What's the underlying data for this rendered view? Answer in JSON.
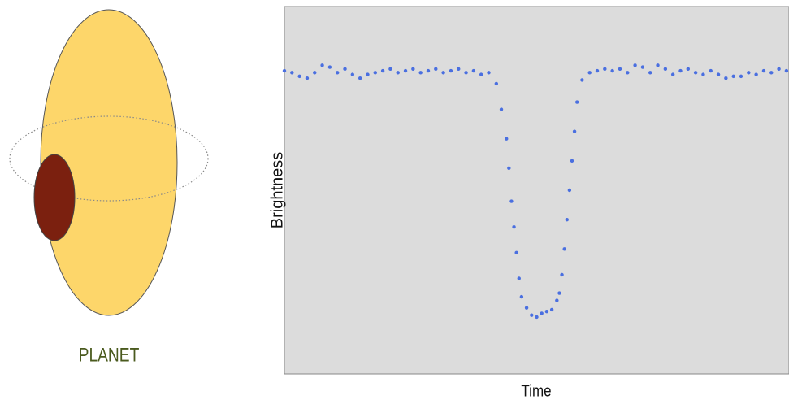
{
  "label": "PLANET",
  "chart_data": {
    "type": "scatter",
    "x_label": "Time",
    "y_label": "Brightness",
    "xlim": [
      0,
      100
    ],
    "ylim": [
      0,
      100
    ],
    "color": "#4a6fe0",
    "x": [
      0,
      1.5,
      3,
      4.5,
      6,
      7.5,
      9,
      10.5,
      12,
      13.5,
      15,
      16.5,
      18,
      19.5,
      21,
      22.5,
      24,
      25.5,
      27,
      28.5,
      30,
      31.5,
      33,
      34.5,
      36,
      37.5,
      39,
      40.5,
      42,
      43,
      44,
      44.5,
      45,
      45.5,
      46,
      46.5,
      47,
      48,
      49,
      50,
      51,
      52,
      53,
      54,
      54.5,
      55,
      55.5,
      56,
      56.5,
      57,
      57.5,
      58,
      59,
      60.5,
      62,
      63.5,
      65,
      66.5,
      68,
      69.5,
      71,
      72.5,
      74,
      75.5,
      77,
      78.5,
      80,
      81.5,
      83,
      84.5,
      86,
      87.5,
      89,
      90.5,
      92,
      93.5,
      95,
      96.5,
      98,
      99.5
    ],
    "values": [
      82.5,
      82,
      81,
      80.5,
      82,
      84,
      83.5,
      82,
      83,
      81.5,
      80.5,
      81.5,
      82,
      82.5,
      83,
      82,
      82.5,
      83,
      82,
      82.5,
      83,
      82,
      82.5,
      83,
      82,
      82.5,
      81.5,
      82,
      79,
      72,
      64,
      56,
      47,
      40,
      33,
      26,
      21,
      18,
      16,
      15.5,
      16.5,
      17,
      17.5,
      20,
      22,
      27,
      34,
      42,
      50,
      58,
      66,
      74,
      80,
      82,
      82.5,
      83,
      82.5,
      83,
      82,
      84,
      83.5,
      82,
      84,
      83,
      81.5,
      82.5,
      83,
      82,
      81.5,
      82.5,
      81.5,
      80.5,
      81,
      81,
      82,
      81.5,
      82.5,
      82,
      83,
      82.5
    ]
  }
}
